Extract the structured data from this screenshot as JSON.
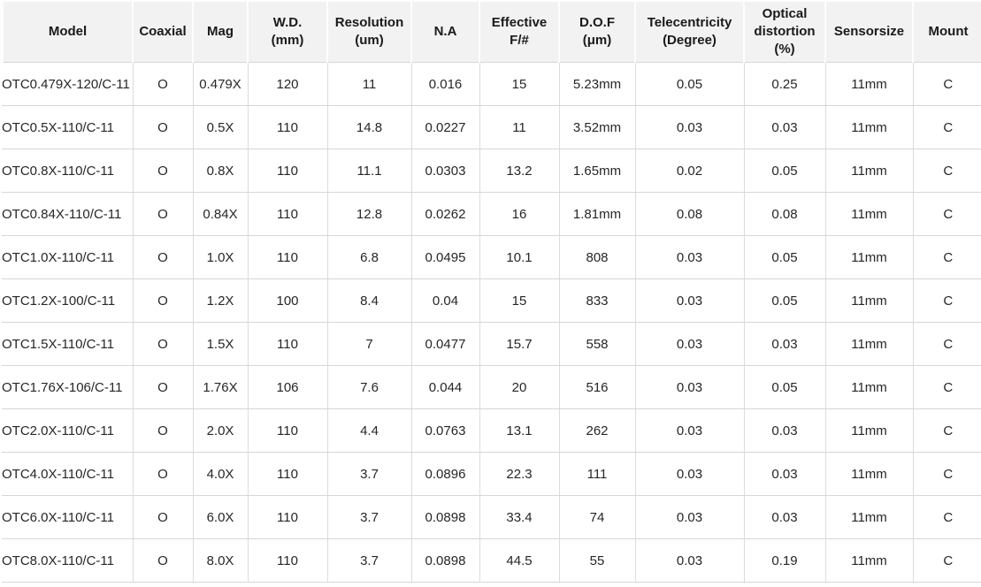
{
  "table": {
    "columns": [
      {
        "key": "model",
        "label": "Model"
      },
      {
        "key": "coaxial",
        "label": "Coaxial"
      },
      {
        "key": "mag",
        "label": "Mag"
      },
      {
        "key": "wd-mm",
        "label": "W.D.\n(mm)"
      },
      {
        "key": "resolution-um",
        "label": "Resolution\n(um)"
      },
      {
        "key": "na",
        "label": "N.A"
      },
      {
        "key": "effective-f",
        "label": "Effective\nF/#"
      },
      {
        "key": "dof-um",
        "label": "D.O.F\n(μm)"
      },
      {
        "key": "telecentricity",
        "label": "Telecentricity\n(Degree)"
      },
      {
        "key": "optical-distortion",
        "label": "Optical\ndistortion\n(%)"
      },
      {
        "key": "sensorsize",
        "label": "Sensorsize"
      },
      {
        "key": "mount",
        "label": "Mount"
      }
    ],
    "rows": [
      [
        "OTC0.479X-120/C-11",
        "O",
        "0.479X",
        "120",
        "11",
        "0.016",
        "15",
        "5.23mm",
        "0.05",
        "0.25",
        "11mm",
        "C"
      ],
      [
        "OTC0.5X-110/C-11",
        "O",
        "0.5X",
        "110",
        "14.8",
        "0.0227",
        "11",
        "3.52mm",
        "0.03",
        "0.03",
        "11mm",
        "C"
      ],
      [
        "OTC0.8X-110/C-11",
        "O",
        "0.8X",
        "110",
        "11.1",
        "0.0303",
        "13.2",
        "1.65mm",
        "0.02",
        "0.05",
        "11mm",
        "C"
      ],
      [
        "OTC0.84X-110/C-11",
        "O",
        "0.84X",
        "110",
        "12.8",
        "0.0262",
        "16",
        "1.81mm",
        "0.08",
        "0.08",
        "11mm",
        "C"
      ],
      [
        "OTC1.0X-110/C-11",
        "O",
        "1.0X",
        "110",
        "6.8",
        "0.0495",
        "10.1",
        "808",
        "0.03",
        "0.05",
        "11mm",
        "C"
      ],
      [
        "OTC1.2X-100/C-11",
        "O",
        "1.2X",
        "100",
        "8.4",
        "0.04",
        "15",
        "833",
        "0.03",
        "0.05",
        "11mm",
        "C"
      ],
      [
        "OTC1.5X-110/C-11",
        "O",
        "1.5X",
        "110",
        "7",
        "0.0477",
        "15.7",
        "558",
        "0.03",
        "0.03",
        "11mm",
        "C"
      ],
      [
        "OTC1.76X-106/C-11",
        "O",
        "1.76X",
        "106",
        "7.6",
        "0.044",
        "20",
        "516",
        "0.03",
        "0.05",
        "11mm",
        "C"
      ],
      [
        "OTC2.0X-110/C-11",
        "O",
        "2.0X",
        "110",
        "4.4",
        "0.0763",
        "13.1",
        "262",
        "0.03",
        "0.03",
        "11mm",
        "C"
      ],
      [
        "OTC4.0X-110/C-11",
        "O",
        "4.0X",
        "110",
        "3.7",
        "0.0896",
        "22.3",
        "111",
        "0.03",
        "0.03",
        "11mm",
        "C"
      ],
      [
        "OTC6.0X-110/C-11",
        "O",
        "6.0X",
        "110",
        "3.7",
        "0.0898",
        "33.4",
        "74",
        "0.03",
        "0.03",
        "11mm",
        "C"
      ],
      [
        "OTC8.0X-110/C-11",
        "O",
        "8.0X",
        "110",
        "3.7",
        "0.0898",
        "44.5",
        "55",
        "0.03",
        "0.19",
        "11mm",
        "C"
      ]
    ]
  },
  "colors": {
    "header_background": "#f2f2f2",
    "body_background": "#ffffff",
    "grid_line": "#d6d6d6",
    "header_text": "#1a1a1a",
    "body_text": "#262626"
  }
}
